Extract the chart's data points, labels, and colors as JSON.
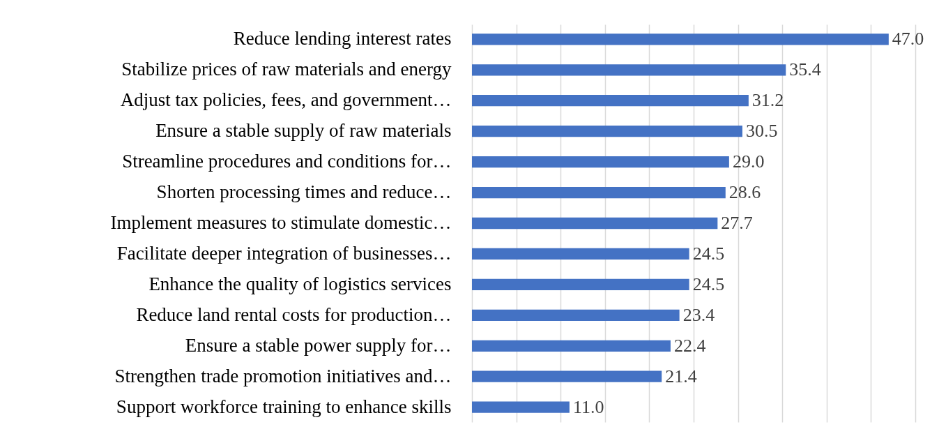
{
  "chart_data": {
    "type": "bar",
    "orientation": "horizontal",
    "categories": [
      "Reduce lending interest rates",
      "Stabilize prices of raw materials and energy",
      "Adjust tax policies, fees, and government…",
      "Ensure a stable supply of raw materials",
      "Streamline procedures and conditions for…",
      "Shorten processing times and reduce…",
      "Implement measures to stimulate domestic…",
      "Facilitate deeper integration of businesses…",
      "Enhance the quality of logistics services",
      "Reduce land rental costs for production…",
      "Ensure a stable power supply for…",
      "Strengthen trade promotion initiatives and…",
      "Support workforce training to enhance skills"
    ],
    "values": [
      47.0,
      35.4,
      31.2,
      30.5,
      29.0,
      28.6,
      27.7,
      24.5,
      24.5,
      23.4,
      22.4,
      21.4,
      11.0
    ],
    "color": "#4472c4",
    "data_labels": true,
    "value_labels": [
      "47.0",
      "35.4",
      "31.2",
      "30.5",
      "29.0",
      "28.6",
      "27.7",
      "24.5",
      "24.5",
      "23.4",
      "22.4",
      "21.4",
      "11.0"
    ],
    "xlim": [
      0,
      50
    ],
    "xticks": [
      {
        "value": 0,
        "label": null
      },
      {
        "value": 5,
        "label": null
      },
      {
        "value": 10,
        "label": null
      },
      {
        "value": 15,
        "label": null
      },
      {
        "value": 20,
        "label": null
      },
      {
        "value": 25,
        "label": null
      },
      {
        "value": 30,
        "label": null
      },
      {
        "value": 35,
        "label": null
      },
      {
        "value": 40,
        "label": null
      },
      {
        "value": 45,
        "label": null
      },
      {
        "value": 50,
        "label": null
      }
    ],
    "grid": "x",
    "tick_labels": "y"
  }
}
